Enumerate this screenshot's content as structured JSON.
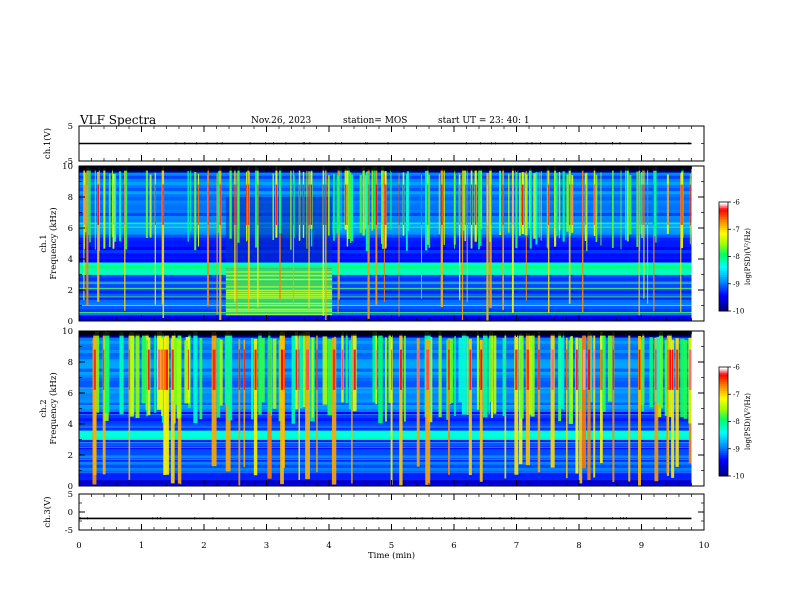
{
  "header": {
    "title": "VLF Spectra",
    "date": "Nov.26, 2023",
    "station": "station= MOS",
    "start": "start  UT  =   23: 40: 1"
  },
  "chart_data": [
    {
      "type": "line",
      "name": "ch1-waveform",
      "ylabel": "ch.1(V)",
      "ylim": [
        -5,
        5
      ],
      "y_ticks": [
        "5",
        "-5"
      ],
      "x": [
        0,
        9.8
      ],
      "values": [
        0,
        0
      ]
    },
    {
      "type": "heatmap",
      "name": "ch1-spectrogram",
      "ylabel": "ch.1\nFrequency (kHz)",
      "ylim": [
        0,
        10
      ],
      "y_ticks": [
        "0",
        "2",
        "4",
        "6",
        "8",
        "10"
      ],
      "xlim": [
        0,
        10
      ],
      "data_x_extent": [
        0,
        9.8
      ],
      "colorbar": {
        "label": "log(PSD)(V²/Hz)",
        "range": [
          -10,
          -6
        ],
        "ticks": [
          "-6",
          "-7",
          "-8",
          "-9",
          "-10"
        ],
        "colors": [
          "#000080",
          "#0000ff",
          "#00a0ff",
          "#00ffff",
          "#00ff60",
          "#a0ff00",
          "#ffff00",
          "#ff8000",
          "#ff0000",
          "#ffffff"
        ]
      },
      "features": {
        "background_band_khz": [
          3.0,
          3.6
        ],
        "noise_block_time_min": [
          2.35,
          4.05
        ],
        "noise_block_freq_khz": [
          0.4,
          3.5
        ],
        "spherics_band_khz": [
          4.5,
          10
        ]
      }
    },
    {
      "type": "heatmap",
      "name": "ch2-spectrogram",
      "ylabel": "ch.2\nFrequency (kHz)",
      "ylim": [
        0,
        10
      ],
      "y_ticks": [
        "0",
        "2",
        "4",
        "6",
        "8",
        "10"
      ],
      "xlim": [
        0,
        10
      ],
      "data_x_extent": [
        0,
        9.8
      ],
      "colorbar": {
        "label": "log(PSD)(V²/Hz)",
        "range": [
          -10,
          -6
        ],
        "ticks": [
          "-6",
          "-7",
          "-8",
          "-9",
          "-10"
        ],
        "colors": [
          "#000080",
          "#0000ff",
          "#00a0ff",
          "#00ffff",
          "#00ff60",
          "#a0ff00",
          "#ffff00",
          "#ff8000",
          "#ff0000",
          "#ffffff"
        ]
      },
      "features": {
        "background_band_khz": [
          3.0,
          3.5
        ],
        "spherics_band_khz": [
          4.0,
          10
        ]
      }
    },
    {
      "type": "line",
      "name": "ch3-waveform",
      "ylabel": "ch.3(V)",
      "ylim": [
        -5,
        5
      ],
      "y_ticks": [
        "5",
        "0",
        "-5"
      ],
      "x": [
        0,
        9.8
      ],
      "values": [
        -1.8,
        -1.8
      ]
    }
  ],
  "x_axis": {
    "label": "Time (min)",
    "ticks": [
      "0",
      "1",
      "2",
      "3",
      "4",
      "5",
      "6",
      "7",
      "8",
      "9",
      "10"
    ],
    "xlim": [
      0,
      10
    ]
  }
}
